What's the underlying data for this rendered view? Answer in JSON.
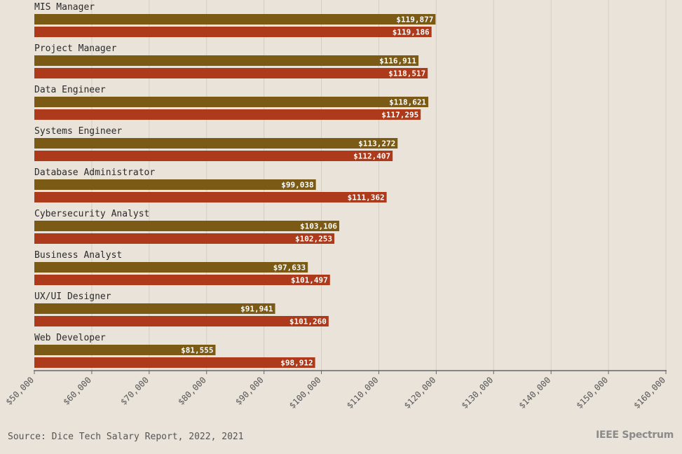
{
  "chart_data": {
    "type": "bar",
    "orientation": "horizontal",
    "categories": [
      "MIS Manager",
      "Project Manager",
      "Data Engineer",
      "Systems Engineer",
      "Database Administrator",
      "Cybersecurity Analyst",
      "Business Analyst",
      "UX/UI Designer",
      "Web Developer"
    ],
    "series": [
      {
        "color": "#7a5a14",
        "values": [
          119877,
          116911,
          118621,
          113272,
          99038,
          103106,
          97633,
          91941,
          81555
        ]
      },
      {
        "color": "#ad3a1a",
        "values": [
          119186,
          118517,
          117295,
          112407,
          111362,
          102253,
          101497,
          101260,
          98912
        ]
      }
    ],
    "value_labels": [
      [
        "$119,877",
        "$116,911",
        "$118,621",
        "$113,272",
        "$99,038",
        "$103,106",
        "$97,633",
        "$91,941",
        "$81,555"
      ],
      [
        "$119,186",
        "$118,517",
        "$117,295",
        "$112,407",
        "$111,362",
        "$102,253",
        "$101,497",
        "$101,260",
        "$98,912"
      ]
    ],
    "xlim": [
      50000,
      160000
    ],
    "xticks": [
      50000,
      60000,
      70000,
      80000,
      90000,
      100000,
      110000,
      120000,
      130000,
      140000,
      150000,
      160000
    ],
    "xtick_labels": [
      "$50,000",
      "$60,000",
      "$70,000",
      "$80,000",
      "$90,000",
      "$100,000",
      "$110,000",
      "$120,000",
      "$130,000",
      "$140,000",
      "$150,000",
      "$160,000"
    ],
    "grid": true
  },
  "source": "Source: Dice Tech Salary Report, 2022, 2021",
  "logo": "IEEE Spectrum"
}
